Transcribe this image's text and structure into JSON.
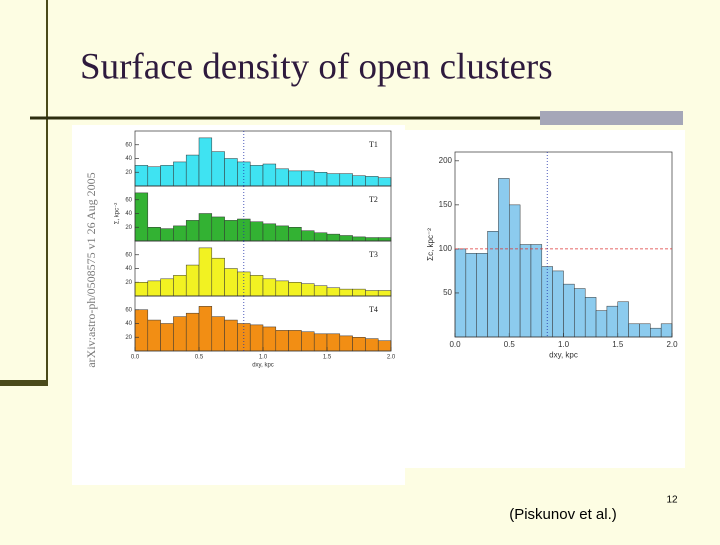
{
  "title": "Surface density of open clusters",
  "caption": "(Piskunov et al.)",
  "page_number": "12",
  "sidebar": "arXiv:astro-ph/0508575 v1  26 Aug 2005",
  "chart_data": [
    {
      "type": "histogram",
      "title": "T1",
      "color": "#3fe3f2",
      "bins": [
        0,
        0.1,
        0.2,
        0.3,
        0.4,
        0.5,
        0.6,
        0.7,
        0.8,
        0.9,
        1,
        1.1,
        1.2,
        1.3,
        1.4,
        1.5,
        1.6,
        1.7,
        1.8,
        1.9,
        2
      ],
      "values": [
        30,
        28,
        30,
        35,
        45,
        70,
        50,
        40,
        35,
        30,
        32,
        25,
        22,
        22,
        20,
        18,
        18,
        15,
        14,
        12
      ],
      "xlim": [
        0,
        2
      ],
      "ylim": [
        0,
        80
      ],
      "yticks": [
        20,
        40,
        60
      ],
      "vline": 0.85
    },
    {
      "type": "histogram",
      "title": "T2",
      "color": "#33b233",
      "bins": [
        0,
        0.1,
        0.2,
        0.3,
        0.4,
        0.5,
        0.6,
        0.7,
        0.8,
        0.9,
        1,
        1.1,
        1.2,
        1.3,
        1.4,
        1.5,
        1.6,
        1.7,
        1.8,
        1.9,
        2
      ],
      "values": [
        70,
        20,
        18,
        22,
        30,
        40,
        35,
        30,
        32,
        28,
        25,
        22,
        20,
        15,
        12,
        10,
        8,
        6,
        5,
        5
      ],
      "xlim": [
        0,
        2
      ],
      "ylim": [
        0,
        80
      ],
      "yticks": [
        20,
        40,
        60
      ],
      "vline": 0.85,
      "ylabel": "Σ, kpc⁻²"
    },
    {
      "type": "histogram",
      "title": "T3",
      "color": "#f2f222",
      "bins": [
        0,
        0.1,
        0.2,
        0.3,
        0.4,
        0.5,
        0.6,
        0.7,
        0.8,
        0.9,
        1,
        1.1,
        1.2,
        1.3,
        1.4,
        1.5,
        1.6,
        1.7,
        1.8,
        1.9,
        2
      ],
      "values": [
        20,
        22,
        25,
        30,
        45,
        70,
        55,
        40,
        35,
        30,
        25,
        22,
        20,
        18,
        15,
        12,
        10,
        10,
        8,
        8
      ],
      "xlim": [
        0,
        2
      ],
      "ylim": [
        0,
        80
      ],
      "yticks": [
        20,
        40,
        60
      ],
      "vline": 0.85
    },
    {
      "type": "histogram",
      "title": "T4",
      "color": "#f28e14",
      "bins": [
        0,
        0.1,
        0.2,
        0.3,
        0.4,
        0.5,
        0.6,
        0.7,
        0.8,
        0.9,
        1,
        1.1,
        1.2,
        1.3,
        1.4,
        1.5,
        1.6,
        1.7,
        1.8,
        1.9,
        2
      ],
      "values": [
        60,
        45,
        40,
        50,
        55,
        65,
        50,
        45,
        40,
        38,
        35,
        30,
        30,
        28,
        25,
        25,
        22,
        20,
        18,
        15
      ],
      "xlim": [
        0,
        2
      ],
      "ylim": [
        0,
        80
      ],
      "yticks": [
        20,
        40,
        60
      ],
      "vline": 0.85,
      "xticks": [
        {
          "value": 0,
          "label": "0.0"
        },
        0.5,
        {
          "value": 1,
          "label": "1.0"
        },
        1.5,
        {
          "value": 2,
          "label": "2.0"
        }
      ],
      "xlabel": "dxy, kpc"
    },
    {
      "type": "histogram",
      "color": "#8ccbee",
      "bins": [
        0,
        0.1,
        0.2,
        0.3,
        0.4,
        0.5,
        0.6,
        0.7,
        0.8,
        0.9,
        1,
        1.1,
        1.2,
        1.3,
        1.4,
        1.5,
        1.6,
        1.7,
        1.8,
        1.9,
        2
      ],
      "values": [
        100,
        95,
        95,
        120,
        180,
        150,
        105,
        105,
        80,
        75,
        60,
        55,
        45,
        30,
        35,
        40,
        15,
        15,
        10,
        15
      ],
      "xlim": [
        0,
        2
      ],
      "ylim": [
        0,
        210
      ],
      "xticks": [
        {
          "value": 0,
          "label": "0.0"
        },
        0.5,
        {
          "value": 1,
          "label": "1.0"
        },
        1.5,
        {
          "value": 2,
          "label": "2.0"
        }
      ],
      "yticks": [
        50,
        100,
        150,
        200
      ],
      "hline": 100,
      "vline": 0.85,
      "xlabel": "dxy, kpc",
      "ylabel": "Σc, kpc⁻²"
    }
  ]
}
